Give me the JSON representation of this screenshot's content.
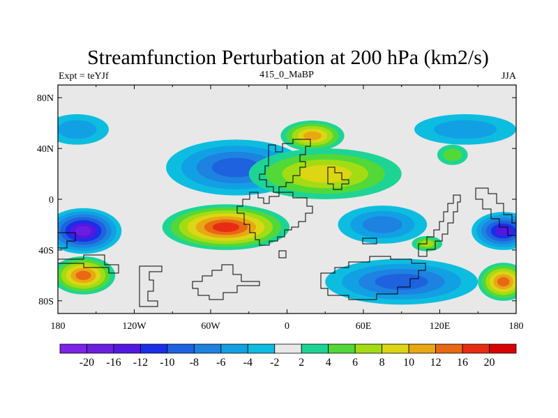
{
  "chart_data": {
    "type": "heatmap",
    "title": "Streamfunction Perturbation at 200 hPa (km2/s)",
    "left_label": "Expt = teYJf",
    "center_label": "415_0_MaBP",
    "right_label": "JJA",
    "x_ticks": [
      {
        "value": -180,
        "label": "180"
      },
      {
        "value": -120,
        "label": "120W"
      },
      {
        "value": -60,
        "label": "60W"
      },
      {
        "value": 0,
        "label": "0"
      },
      {
        "value": 60,
        "label": "60E"
      },
      {
        "value": 120,
        "label": "120E"
      },
      {
        "value": 180,
        "label": "180"
      }
    ],
    "y_ticks": [
      {
        "value": 80,
        "label": "80N"
      },
      {
        "value": 40,
        "label": "40N"
      },
      {
        "value": 0,
        "label": "0"
      },
      {
        "value": -40,
        "label": "40S"
      },
      {
        "value": -80,
        "label": "80S"
      }
    ],
    "xlim": [
      -180,
      180
    ],
    "ylim": [
      -90,
      90
    ],
    "contour_levels": [
      "-20",
      "-16",
      "-12",
      "-10",
      "-8",
      "-6",
      "-4",
      "-2",
      "2",
      "4",
      "6",
      "8",
      "10",
      "12",
      "16",
      "20"
    ],
    "colors": [
      "#7d22e6",
      "#6a1fe0",
      "#5318e0",
      "#1c2ee8",
      "#1e62df",
      "#1d82e0",
      "#12a0e4",
      "#0dbde0",
      "#e8e8e8",
      "#1ed494",
      "#52d838",
      "#a4dc14",
      "#dcd614",
      "#e8a814",
      "#e86814",
      "#e82c14",
      "#d80000"
    ],
    "features": [
      {
        "lon": -160,
        "lat": -25,
        "value": -20,
        "rx": 30,
        "ry": 18
      },
      {
        "lon": -48,
        "lat": -22,
        "value": 16,
        "rx": 50,
        "ry": 18
      },
      {
        "lon": -40,
        "lat": 25,
        "value": -10,
        "rx": 55,
        "ry": 22
      },
      {
        "lon": 30,
        "lat": 20,
        "value": 8,
        "rx": 60,
        "ry": 20
      },
      {
        "lon": 20,
        "lat": 50,
        "value": 10,
        "rx": 25,
        "ry": 12
      },
      {
        "lon": 75,
        "lat": -20,
        "value": -8,
        "rx": 35,
        "ry": 15
      },
      {
        "lon": 90,
        "lat": -65,
        "value": -10,
        "rx": 60,
        "ry": 18
      },
      {
        "lon": -160,
        "lat": -60,
        "value": 12,
        "rx": 25,
        "ry": 15
      },
      {
        "lon": 170,
        "lat": -25,
        "value": -16,
        "rx": 25,
        "ry": 15
      },
      {
        "lon": 170,
        "lat": -65,
        "value": 12,
        "rx": 20,
        "ry": 15
      },
      {
        "lon": 140,
        "lat": 55,
        "value": -6,
        "rx": 40,
        "ry": 12
      },
      {
        "lon": -165,
        "lat": 55,
        "value": -6,
        "rx": 25,
        "ry": 12
      },
      {
        "lon": 110,
        "lat": -35,
        "value": 6,
        "rx": 12,
        "ry": 6
      },
      {
        "lon": 130,
        "lat": 35,
        "value": 4,
        "rx": 12,
        "ry": 8
      }
    ]
  }
}
